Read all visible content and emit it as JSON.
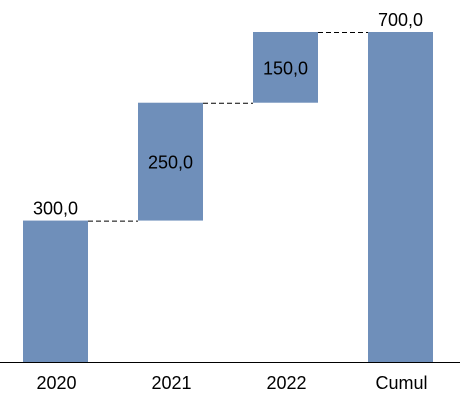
{
  "chart_data": {
    "type": "bar",
    "subtype": "waterfall",
    "categories": [
      "2020",
      "2021",
      "2022",
      "Cumul"
    ],
    "values": [
      300.0,
      250.0,
      150.0,
      700.0
    ],
    "kinds": [
      "increase",
      "increase",
      "increase",
      "total"
    ],
    "data_labels": [
      "300,0",
      "250,0",
      "150,0",
      "700,0"
    ],
    "title": "",
    "xlabel": "",
    "ylabel": "",
    "ylim": [
      0,
      700
    ],
    "grid": false,
    "legend": "none",
    "bar_color": "#6f8fba"
  }
}
